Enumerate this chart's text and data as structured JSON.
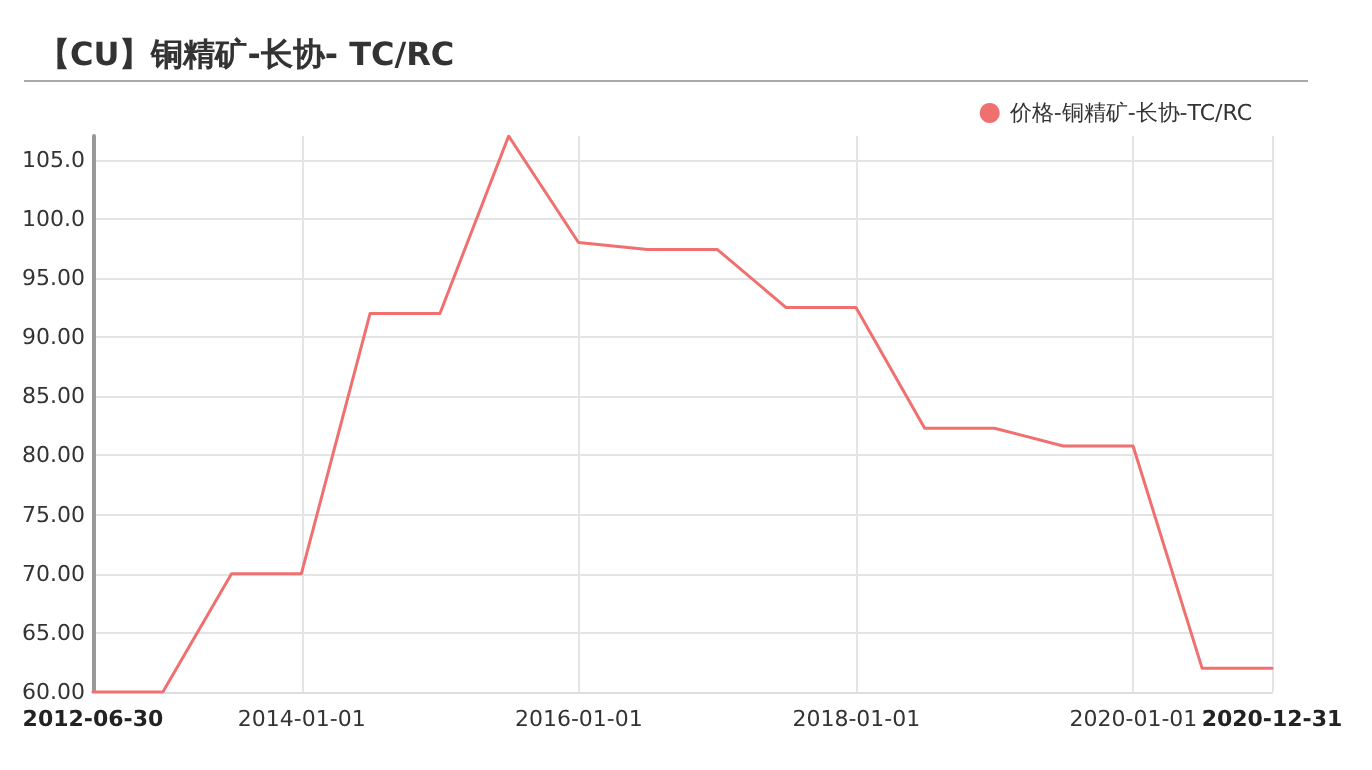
{
  "chart_data": {
    "type": "line",
    "title": "【CU】铜精矿-长协- TC/RC",
    "x": [
      "2012-06-30",
      "2012-12-31",
      "2013-06-30",
      "2013-12-31",
      "2014-06-30",
      "2014-12-31",
      "2015-06-30",
      "2015-12-31",
      "2016-06-30",
      "2016-12-31",
      "2017-06-30",
      "2017-12-31",
      "2018-06-30",
      "2018-12-31",
      "2019-06-30",
      "2019-12-31",
      "2020-06-30",
      "2020-12-31"
    ],
    "series": [
      {
        "name": "价格-铜精矿-长协-TC/RC",
        "color": "#f07070",
        "values": [
          60,
          60,
          70,
          70,
          92,
          92,
          107,
          98,
          97.4,
          97.4,
          92.5,
          92.5,
          82.3,
          82.3,
          80.8,
          80.8,
          62,
          62
        ]
      }
    ],
    "xlim": [
      "2012-06-30",
      "2020-12-31"
    ],
    "xticks": [
      "2012-06-30",
      "2014-01-01",
      "2016-01-01",
      "2018-01-01",
      "2020-01-01",
      "2020-12-31"
    ],
    "ylim": [
      60,
      107
    ],
    "yticks": [
      {
        "value": 60,
        "label": "60.00"
      },
      {
        "value": 65,
        "label": "65.00"
      },
      {
        "value": 70,
        "label": "70.00"
      },
      {
        "value": 75,
        "label": "75.00"
      },
      {
        "value": 80,
        "label": "80.00"
      },
      {
        "value": 85,
        "label": "85.00"
      },
      {
        "value": 90,
        "label": "90.00"
      },
      {
        "value": 95,
        "label": "95.00"
      },
      {
        "value": 100,
        "label": "100.0"
      },
      {
        "value": 105,
        "label": "105.0"
      }
    ],
    "grid": true,
    "legend": "top right",
    "marker": "none",
    "line_style": "solid"
  }
}
